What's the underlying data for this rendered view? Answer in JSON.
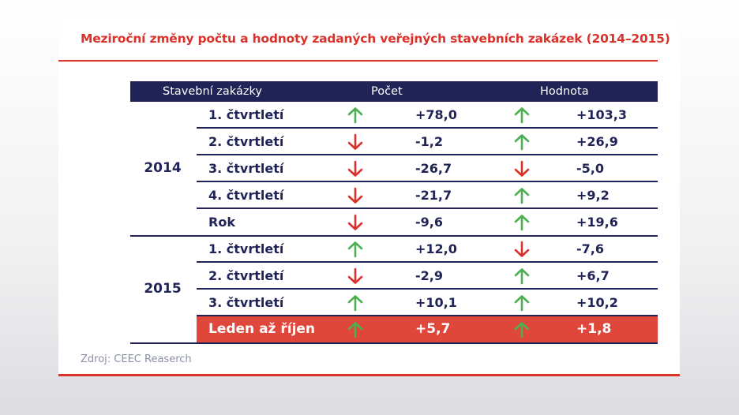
{
  "title": "Meziroční změny počtu a hodnoty zadaných veřejných stavebních zakázek (2014–2015)",
  "source": "Zdroj: CEEC Reaserch",
  "colors": {
    "accent": "#d9322b",
    "navy": "#1f2355",
    "up": "#4caf50",
    "down": "#d9322b",
    "highlight": "#e0473b"
  },
  "chart_data": {
    "type": "table",
    "columns": [
      "Stavební zakázky",
      "Počet",
      "Hodnota"
    ],
    "groups": [
      {
        "year": "2014",
        "rows": [
          {
            "label": "1. čtvrtletí",
            "pocet": "+78,0",
            "pocet_dir": "up",
            "hodnota": "+103,3",
            "hodnota_dir": "up"
          },
          {
            "label": "2. čtvrtletí",
            "pocet": "-1,2",
            "pocet_dir": "down",
            "hodnota": "+26,9",
            "hodnota_dir": "up"
          },
          {
            "label": "3. čtvrtletí",
            "pocet": "-26,7",
            "pocet_dir": "down",
            "hodnota": "-5,0",
            "hodnota_dir": "down"
          },
          {
            "label": "4. čtvrtletí",
            "pocet": "-21,7",
            "pocet_dir": "down",
            "hodnota": "+9,2",
            "hodnota_dir": "up"
          },
          {
            "label": "Rok",
            "pocet": "-9,6",
            "pocet_dir": "down",
            "hodnota": "+19,6",
            "hodnota_dir": "up"
          }
        ]
      },
      {
        "year": "2015",
        "rows": [
          {
            "label": "1. čtvrtletí",
            "pocet": "+12,0",
            "pocet_dir": "up",
            "hodnota": "-7,6",
            "hodnota_dir": "down"
          },
          {
            "label": "2. čtvrtletí",
            "pocet": "-2,9",
            "pocet_dir": "down",
            "hodnota": "+6,7",
            "hodnota_dir": "up"
          },
          {
            "label": "3. čtvrtletí",
            "pocet": "+10,1",
            "pocet_dir": "up",
            "hodnota": "+10,2",
            "hodnota_dir": "up"
          },
          {
            "label": "Leden až říjen",
            "pocet": "+5,7",
            "pocet_dir": "up",
            "hodnota": "+1,8",
            "hodnota_dir": "up",
            "highlight": true
          }
        ]
      }
    ]
  }
}
